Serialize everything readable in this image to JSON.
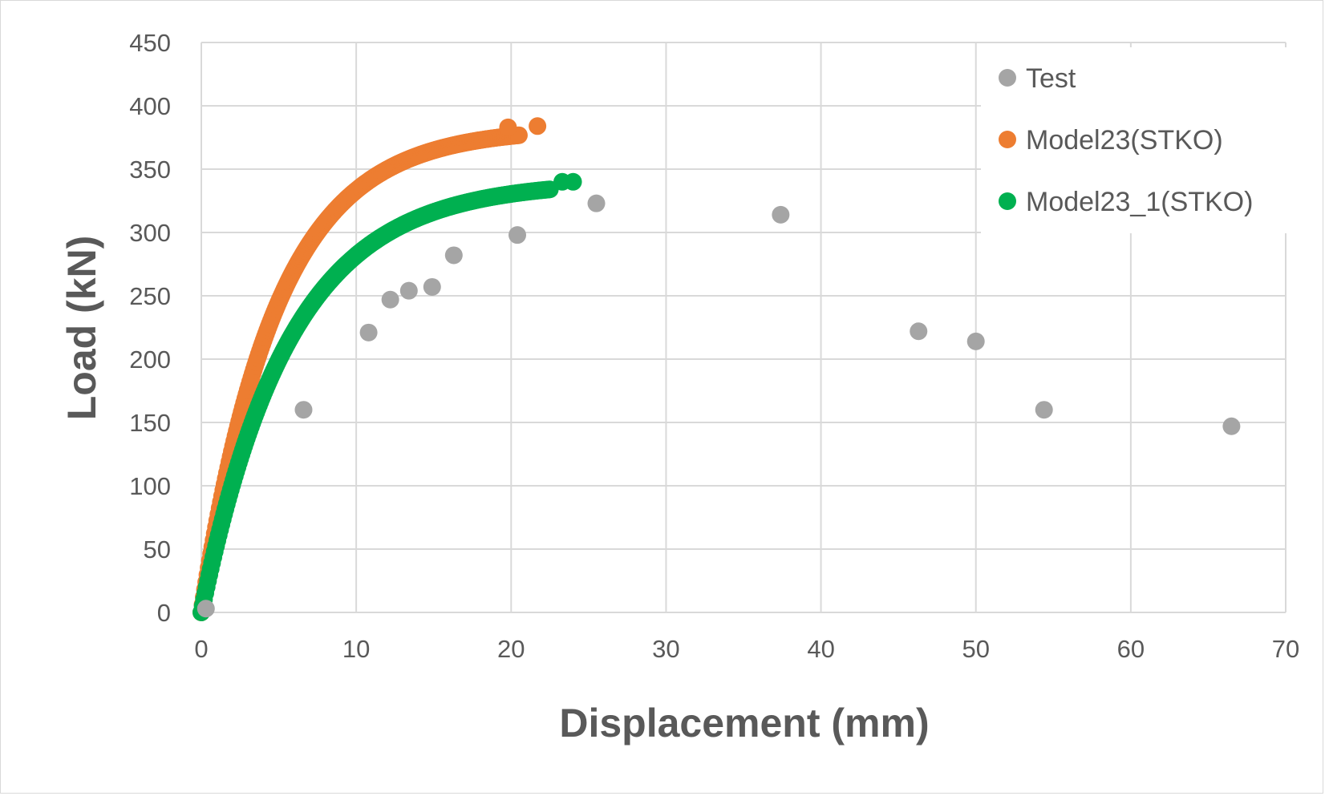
{
  "chart_data": {
    "type": "scatter",
    "title": "",
    "xlabel": "Displacement (mm)",
    "ylabel": "Load (kN)",
    "xlim": [
      0,
      70
    ],
    "ylim": [
      0,
      450
    ],
    "xticks": [
      0,
      10,
      20,
      30,
      40,
      50,
      60,
      70
    ],
    "yticks": [
      0,
      50,
      100,
      150,
      200,
      250,
      300,
      350,
      400,
      450
    ],
    "grid": true,
    "legend_position": "top-right",
    "series": [
      {
        "name": "Test",
        "color": "#a5a5a5",
        "marker": "circle",
        "points": [
          [
            0.3,
            3
          ],
          [
            6.6,
            160
          ],
          [
            10.8,
            221
          ],
          [
            12.2,
            247
          ],
          [
            13.4,
            254
          ],
          [
            14.9,
            257
          ],
          [
            16.3,
            282
          ],
          [
            20.4,
            298
          ],
          [
            25.5,
            323
          ],
          [
            37.4,
            314
          ],
          [
            46.3,
            222
          ],
          [
            50.0,
            214
          ],
          [
            54.4,
            160
          ],
          [
            66.5,
            147
          ]
        ]
      },
      {
        "name": "Model23(STKO)",
        "color": "#ed7d31",
        "marker": "circle",
        "curve": {
          "ymax": 382.5,
          "k": 0.205,
          "xmax": 20.5
        },
        "extra_points": [
          [
            19.8,
            383
          ],
          [
            21.7,
            384
          ]
        ]
      },
      {
        "name": "Model23_1(STKO)",
        "color": "#00b050",
        "marker": "circle",
        "curve": {
          "ymax": 340.5,
          "k": 0.176,
          "xmax": 22.5
        },
        "extra_points": [
          [
            23.3,
            340
          ],
          [
            24.0,
            340
          ]
        ]
      }
    ]
  }
}
